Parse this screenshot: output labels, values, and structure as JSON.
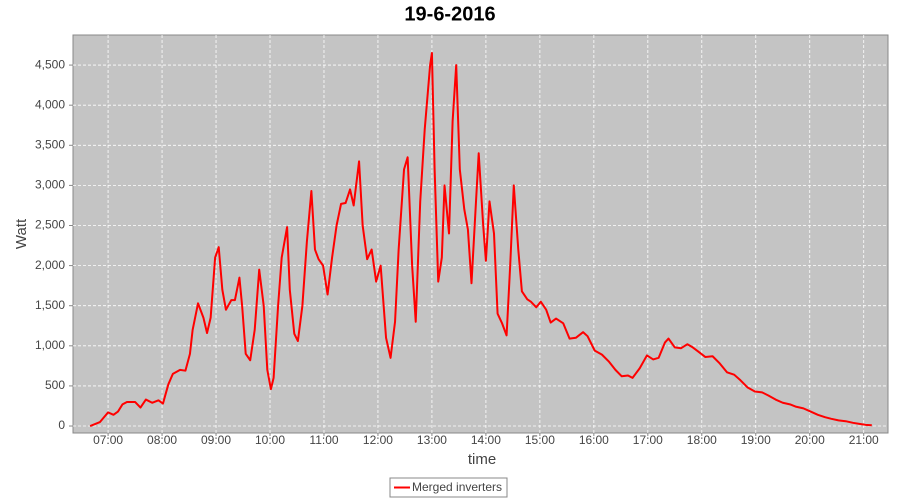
{
  "chart_data": {
    "type": "line",
    "title": "19-6-2016",
    "x_label": "time",
    "y_label": "Watt",
    "x": [
      "06:40",
      "06:51",
      "07:00",
      "07:06",
      "07:11",
      "07:16",
      "07:21",
      "07:30",
      "07:36",
      "07:42",
      "07:49",
      "07:56",
      "08:01",
      "08:07",
      "08:12",
      "08:20",
      "08:26",
      "08:31",
      "08:34",
      "08:40",
      "08:46",
      "08:50",
      "08:54",
      "08:59",
      "09:03",
      "09:07",
      "09:11",
      "09:17",
      "09:21",
      "09:26",
      "09:29",
      "09:33",
      "09:38",
      "09:43",
      "09:48",
      "09:53",
      "09:57",
      "10:01",
      "10:04",
      "10:09",
      "10:13",
      "10:19",
      "10:22",
      "10:27",
      "10:31",
      "10:36",
      "10:41",
      "10:46",
      "10:50",
      "10:54",
      "10:59",
      "11:04",
      "11:09",
      "11:14",
      "11:19",
      "11:24",
      "11:29",
      "11:33",
      "11:39",
      "11:43",
      "11:48",
      "11:53",
      "11:58",
      "12:03",
      "12:09",
      "12:14",
      "12:19",
      "12:23",
      "12:29",
      "12:33",
      "12:38",
      "12:42",
      "12:47",
      "12:52",
      "12:58",
      "13:00",
      "13:03",
      "13:07",
      "13:11",
      "13:14",
      "13:19",
      "13:23",
      "13:27",
      "13:31",
      "13:36",
      "13:40",
      "13:44",
      "13:49",
      "13:52",
      "13:57",
      "14:00",
      "14:04",
      "14:09",
      "14:13",
      "14:18",
      "14:23",
      "14:27",
      "14:31",
      "14:36",
      "14:40",
      "14:46",
      "14:50",
      "14:56",
      "15:01",
      "15:07",
      "15:12",
      "15:18",
      "15:26",
      "15:33",
      "15:40",
      "15:48",
      "15:53",
      "16:01",
      "16:09",
      "16:17",
      "16:24",
      "16:31",
      "16:38",
      "16:43",
      "16:51",
      "16:59",
      "17:06",
      "17:12",
      "17:19",
      "17:23",
      "17:30",
      "17:37",
      "17:44",
      "17:50",
      "17:57",
      "18:04",
      "18:12",
      "18:20",
      "18:28",
      "18:36",
      "18:43",
      "18:51",
      "18:59",
      "19:07",
      "19:14",
      "19:22",
      "19:30",
      "19:38",
      "19:45",
      "19:53",
      "20:01",
      "20:09",
      "20:17",
      "20:24",
      "20:32",
      "20:40",
      "20:48",
      "20:56",
      "21:02",
      "21:09"
    ],
    "series": [
      {
        "name": "Merged inverters",
        "color": "#ff0000",
        "values": [
          0,
          50,
          170,
          140,
          180,
          270,
          300,
          300,
          230,
          330,
          290,
          320,
          280,
          520,
          650,
          700,
          690,
          900,
          1200,
          1530,
          1350,
          1160,
          1350,
          2100,
          2230,
          1700,
          1450,
          1570,
          1570,
          1850,
          1500,
          900,
          820,
          1200,
          1950,
          1500,
          700,
          460,
          600,
          1500,
          2100,
          2480,
          1700,
          1150,
          1060,
          1500,
          2300,
          2930,
          2200,
          2080,
          2000,
          1640,
          2100,
          2500,
          2770,
          2780,
          2950,
          2750,
          3300,
          2500,
          2080,
          2200,
          1800,
          2000,
          1100,
          850,
          1300,
          2200,
          3200,
          3350,
          2000,
          1300,
          2800,
          3700,
          4500,
          4650,
          3200,
          1800,
          2100,
          3000,
          2400,
          3800,
          4500,
          3200,
          2700,
          2450,
          1780,
          2800,
          3400,
          2500,
          2060,
          2800,
          2400,
          1400,
          1280,
          1130,
          2000,
          3000,
          2200,
          1680,
          1580,
          1550,
          1480,
          1550,
          1450,
          1290,
          1340,
          1280,
          1090,
          1100,
          1170,
          1120,
          940,
          890,
          800,
          700,
          620,
          630,
          600,
          720,
          880,
          830,
          850,
          1040,
          1090,
          980,
          970,
          1020,
          980,
          920,
          860,
          870,
          780,
          670,
          640,
          570,
          480,
          430,
          420,
          380,
          330,
          290,
          270,
          240,
          220,
          180,
          140,
          110,
          90,
          70,
          60,
          40,
          25,
          15,
          10
        ]
      }
    ],
    "xlim": [
      "06:21",
      "21:27"
    ],
    "xticks": [
      "07:00",
      "08:00",
      "09:00",
      "10:00",
      "11:00",
      "12:00",
      "13:00",
      "14:00",
      "15:00",
      "16:00",
      "17:00",
      "18:00",
      "19:00",
      "20:00",
      "21:00"
    ],
    "ylim": [
      -87,
      4875
    ],
    "yticks": [
      0,
      500,
      {
        "value": 1000,
        "label": "1,000"
      },
      {
        "value": 1500,
        "label": "1,500"
      },
      {
        "value": 2000,
        "label": "2,000"
      },
      {
        "value": 2500,
        "label": "2,500"
      },
      {
        "value": 3000,
        "label": "3,000"
      },
      {
        "value": 3500,
        "label": "3,500"
      },
      {
        "value": 4000,
        "label": "4,000"
      },
      {
        "value": 4500,
        "label": "4,500"
      }
    ],
    "grid": true,
    "legend": "bottom"
  }
}
